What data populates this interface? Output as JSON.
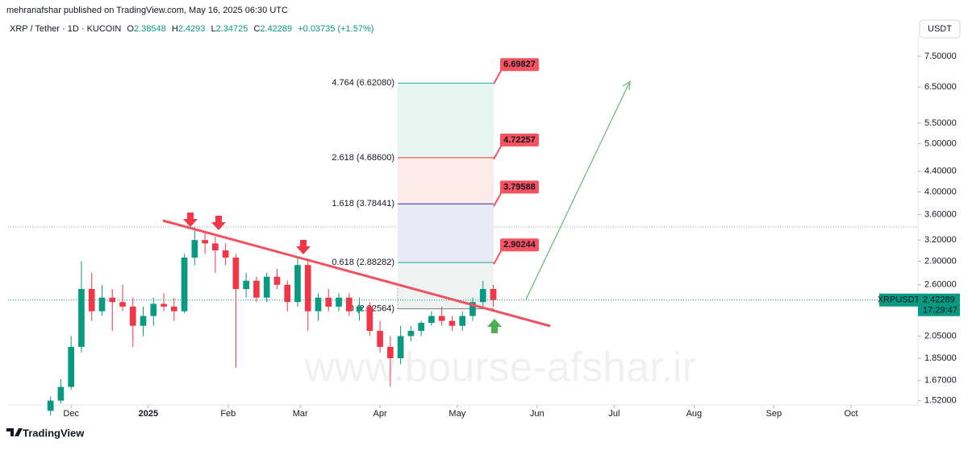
{
  "header": {
    "publisher": "mehranafshar published on TradingView.com, May 16, 2025 06:30 UTC",
    "symbol": "XRP / Tether · 1D · KUCOIN",
    "open_label": "O",
    "open": 2.38548,
    "high_label": "H",
    "high": 2.4293,
    "low_label": "L",
    "low": 2.34725,
    "close_label": "C",
    "close": 2.42289,
    "change": "+0.03735 (+1.57%)",
    "currency": "USDT"
  },
  "price_tag": {
    "symbol": "XRPUSDT",
    "value": 2.42289,
    "countdown": "17:29:47"
  },
  "watermark": "www.bourse-afshar.ir",
  "footer": "TradingView",
  "chart_data": {
    "type": "candlestick",
    "log_scale": true,
    "up_color": "#089981",
    "down_color": "#f23645",
    "x": [
      -38,
      -34,
      -30,
      -26,
      -22,
      -18,
      -14,
      -10,
      -6,
      -2,
      2,
      6,
      10,
      14,
      18,
      22,
      26,
      30,
      34,
      38,
      42,
      46,
      50,
      54,
      58,
      62,
      66,
      70,
      74,
      78,
      82,
      86,
      90,
      94,
      98,
      102,
      106,
      110,
      114,
      118,
      122,
      126,
      130,
      134
    ],
    "open": [
      1.45,
      1.52,
      1.62,
      1.95,
      2.55,
      2.3,
      2.45,
      2.4,
      2.35,
      2.15,
      2.25,
      2.38,
      2.35,
      2.3,
      2.95,
      3.2,
      3.15,
      3.05,
      2.95,
      2.55,
      2.65,
      2.45,
      2.7,
      2.6,
      2.4,
      2.85,
      2.3,
      2.45,
      2.35,
      2.45,
      2.3,
      2.35,
      2.1,
      1.95,
      1.85,
      2.05,
      2.1,
      2.18,
      2.25,
      2.2,
      2.15,
      2.25,
      2.4,
      2.55
    ],
    "high": [
      1.55,
      1.68,
      2.05,
      2.9,
      2.75,
      2.6,
      2.55,
      2.6,
      2.45,
      2.35,
      2.45,
      2.5,
      2.45,
      3.0,
      3.4,
      3.3,
      3.25,
      3.15,
      3.0,
      2.75,
      2.7,
      2.75,
      2.8,
      2.65,
      2.95,
      2.9,
      2.5,
      2.55,
      2.5,
      2.5,
      2.45,
      2.4,
      2.2,
      2.05,
      2.15,
      2.15,
      2.2,
      2.3,
      2.35,
      2.25,
      2.3,
      2.45,
      2.65,
      2.6
    ],
    "low": [
      1.42,
      1.5,
      1.6,
      1.9,
      2.2,
      2.25,
      2.1,
      2.3,
      1.95,
      2.05,
      2.15,
      2.3,
      2.2,
      2.28,
      2.85,
      3.0,
      2.75,
      2.85,
      1.77,
      2.45,
      2.4,
      2.4,
      2.55,
      2.3,
      2.35,
      2.1,
      2.2,
      2.3,
      2.3,
      2.25,
      2.2,
      2.05,
      1.9,
      1.62,
      1.8,
      2.0,
      2.05,
      2.15,
      2.15,
      2.1,
      2.1,
      2.2,
      2.35,
      2.35
    ],
    "close": [
      1.52,
      1.62,
      1.95,
      2.55,
      2.3,
      2.45,
      2.4,
      2.35,
      2.15,
      2.25,
      2.38,
      2.35,
      2.3,
      2.95,
      3.2,
      3.15,
      3.05,
      2.95,
      2.55,
      2.65,
      2.45,
      2.7,
      2.6,
      2.4,
      2.85,
      2.3,
      2.45,
      2.35,
      2.45,
      2.3,
      2.35,
      2.1,
      1.95,
      1.85,
      2.05,
      2.1,
      2.18,
      2.25,
      2.2,
      2.15,
      2.25,
      2.4,
      2.55,
      2.42289
    ],
    "xlim": [
      -54.5,
      299
    ],
    "xticks": [
      {
        "value": -30,
        "label": "Dec"
      },
      {
        "value": 0,
        "label": "2025"
      },
      {
        "value": 31,
        "label": "Feb"
      },
      {
        "value": 59,
        "label": "Mar"
      },
      {
        "value": 90,
        "label": "Apr"
      },
      {
        "value": 120,
        "label": "May"
      },
      {
        "value": 151,
        "label": "Jun"
      },
      {
        "value": 181,
        "label": "Jul"
      },
      {
        "value": 212,
        "label": "Aug"
      },
      {
        "value": 243,
        "label": "Sep"
      },
      {
        "value": 273,
        "label": "Oct"
      }
    ],
    "ylim": [
      1.49,
      8.23
    ],
    "yticks": [
      {
        "value": 1.52,
        "label": "1.52000"
      },
      {
        "value": 1.67,
        "label": "1.67000"
      },
      {
        "value": 1.85,
        "label": "1.85000"
      },
      {
        "value": 2.05,
        "label": "2.05000"
      },
      {
        "value": 2.6,
        "label": "2.60000"
      },
      {
        "value": 2.9,
        "label": "2.90000"
      },
      {
        "value": 3.2,
        "label": "3.20000"
      },
      {
        "value": 3.6,
        "label": "3.60000"
      },
      {
        "value": 4,
        "label": "4.00000"
      },
      {
        "value": 4.4,
        "label": "4.40000"
      },
      {
        "value": 5,
        "label": "5.00000"
      },
      {
        "value": 5.5,
        "label": "5.50000"
      },
      {
        "value": 6.5,
        "label": "6.50000"
      },
      {
        "value": 7.5,
        "label": "7.50000"
      }
    ],
    "fib_levels": [
      {
        "value": 2.32564,
        "label": "0 (2.32564)",
        "color": "#787b86"
      },
      {
        "value": 2.88282,
        "label": "0.618 (2.88282)",
        "color": "#22ab94"
      },
      {
        "value": 3.78441,
        "label": "1.618 (3.78441)",
        "color": "#2a2e8f"
      },
      {
        "value": 4.686,
        "label": "2.618 (4.68600)",
        "color": "#e53935"
      },
      {
        "value": 6.6208,
        "label": "4.764 (6.62080)",
        "color": "#22ab94"
      }
    ],
    "fib_fills": [
      "#eef2f1",
      "#e8eaf6",
      "#fdeaea",
      "#e6f5ef"
    ],
    "targets": [
      2.90244,
      3.79588,
      4.72257,
      6.69827
    ],
    "resistance_level": 3.4
  }
}
